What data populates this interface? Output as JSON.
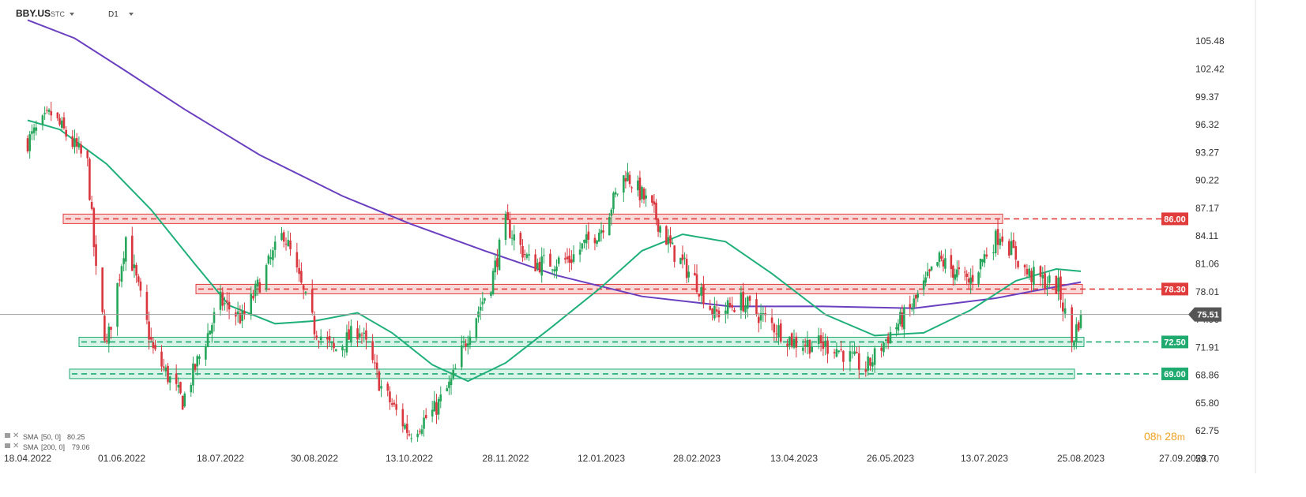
{
  "header": {
    "symbol": "BBY.US",
    "suffix": "STC",
    "timeframe": "D1"
  },
  "colors": {
    "bull": "#26a65b",
    "bear": "#d9363e",
    "sma50": "#1fb07a",
    "sma200": "#6a3fc0",
    "resistance": "#e03c3c",
    "support": "#1faa70",
    "price_line": "#9e9e9e"
  },
  "legend": {
    "sma50_label": "SMA",
    "sma50_params": "[50, 0]",
    "sma50_value": "80.25",
    "sma200_label": "SMA",
    "sma200_params": "[200, 0]",
    "sma200_value": "79.06"
  },
  "timer": {
    "hours": "08",
    "h": "h",
    "minutes": "28",
    "m": "m"
  },
  "chart_data": {
    "type": "candlestick",
    "title": "",
    "symbol": "BBY.US",
    "timeframe": "D1",
    "ylim": [
      59.7,
      108.5
    ],
    "y_ticks": [
      "105.48",
      "102.42",
      "99.37",
      "96.32",
      "93.27",
      "90.22",
      "87.17",
      "84.11",
      "81.06",
      "78.01",
      "74.96",
      "71.91",
      "68.86",
      "65.80",
      "62.75",
      "59.70"
    ],
    "x_ticks": [
      "18.04.2022",
      "01.06.2022",
      "18.07.2022",
      "30.08.2022",
      "13.10.2022",
      "28.11.2022",
      "12.01.2023",
      "28.02.2023",
      "13.04.2023",
      "26.05.2023",
      "13.07.2023",
      "25.08.2023",
      "27.09.2023"
    ],
    "current_price": 75.51,
    "levels": [
      {
        "value": 86.0,
        "label": "86.00",
        "kind": "resistance"
      },
      {
        "value": 78.3,
        "label": "78.30",
        "kind": "resistance"
      },
      {
        "value": 72.5,
        "label": "72.50",
        "kind": "support"
      },
      {
        "value": 69.0,
        "label": "69.00",
        "kind": "support"
      }
    ],
    "ohlc_anchors": [
      {
        "date": "2022-04-18",
        "close": 94.5
      },
      {
        "date": "2022-04-29",
        "close": 97.5
      },
      {
        "date": "2022-05-16",
        "close": 92.0
      },
      {
        "date": "2022-05-20",
        "close": 80.0
      },
      {
        "date": "2022-05-25",
        "close": 72.0
      },
      {
        "date": "2022-06-03",
        "close": 84.0
      },
      {
        "date": "2022-06-16",
        "close": 71.5
      },
      {
        "date": "2022-06-30",
        "close": 66.0
      },
      {
        "date": "2022-07-18",
        "close": 77.0
      },
      {
        "date": "2022-07-28",
        "close": 75.0
      },
      {
        "date": "2022-08-16",
        "close": 84.5
      },
      {
        "date": "2022-08-30",
        "close": 74.0
      },
      {
        "date": "2022-09-08",
        "close": 71.5
      },
      {
        "date": "2022-09-20",
        "close": 74.0
      },
      {
        "date": "2022-09-30",
        "close": 67.5
      },
      {
        "date": "2022-10-13",
        "close": 62.5
      },
      {
        "date": "2022-10-25",
        "close": 65.0
      },
      {
        "date": "2022-11-02",
        "close": 68.0
      },
      {
        "date": "2022-11-11",
        "close": 74.0
      },
      {
        "date": "2022-11-21",
        "close": 79.0
      },
      {
        "date": "2022-11-28",
        "close": 85.5
      },
      {
        "date": "2022-12-10",
        "close": 81.0
      },
      {
        "date": "2022-12-28",
        "close": 81.5
      },
      {
        "date": "2023-01-12",
        "close": 85.0
      },
      {
        "date": "2023-01-24",
        "close": 91.0
      },
      {
        "date": "2023-02-06",
        "close": 87.0
      },
      {
        "date": "2023-02-16",
        "close": 82.5
      },
      {
        "date": "2023-02-28",
        "close": 79.0
      },
      {
        "date": "2023-03-08",
        "close": 75.5
      },
      {
        "date": "2023-03-20",
        "close": 77.0
      },
      {
        "date": "2023-04-13",
        "close": 72.5
      },
      {
        "date": "2023-05-01",
        "close": 72.0
      },
      {
        "date": "2023-05-15",
        "close": 69.5
      },
      {
        "date": "2023-05-26",
        "close": 73.5
      },
      {
        "date": "2023-06-05",
        "close": 76.0
      },
      {
        "date": "2023-06-20",
        "close": 81.5
      },
      {
        "date": "2023-07-05",
        "close": 79.0
      },
      {
        "date": "2023-07-20",
        "close": 84.5
      },
      {
        "date": "2023-08-01",
        "close": 80.0
      },
      {
        "date": "2023-08-15",
        "close": 78.5
      },
      {
        "date": "2023-08-21",
        "close": 72.5
      },
      {
        "date": "2023-08-25",
        "close": 75.51
      }
    ],
    "sma50": [
      {
        "date": "2022-04-18",
        "value": 96.8
      },
      {
        "date": "2022-05-03",
        "value": 95.8
      },
      {
        "date": "2022-05-25",
        "value": 92.0
      },
      {
        "date": "2022-06-15",
        "value": 87.0
      },
      {
        "date": "2022-07-06",
        "value": 81.0
      },
      {
        "date": "2022-07-22",
        "value": 76.5
      },
      {
        "date": "2022-08-12",
        "value": 74.5
      },
      {
        "date": "2022-08-30",
        "value": 74.8
      },
      {
        "date": "2022-09-19",
        "value": 75.7
      },
      {
        "date": "2022-10-05",
        "value": 73.5
      },
      {
        "date": "2022-10-24",
        "value": 70.0
      },
      {
        "date": "2022-11-10",
        "value": 68.2
      },
      {
        "date": "2022-11-28",
        "value": 70.2
      },
      {
        "date": "2022-12-19",
        "value": 74.0
      },
      {
        "date": "2023-01-12",
        "value": 78.5
      },
      {
        "date": "2023-02-01",
        "value": 82.5
      },
      {
        "date": "2023-02-21",
        "value": 84.3
      },
      {
        "date": "2023-03-13",
        "value": 83.5
      },
      {
        "date": "2023-04-03",
        "value": 80.0
      },
      {
        "date": "2023-04-27",
        "value": 75.5
      },
      {
        "date": "2023-05-19",
        "value": 73.2
      },
      {
        "date": "2023-06-12",
        "value": 73.5
      },
      {
        "date": "2023-07-06",
        "value": 76.0
      },
      {
        "date": "2023-07-27",
        "value": 79.2
      },
      {
        "date": "2023-08-14",
        "value": 80.5
      },
      {
        "date": "2023-08-25",
        "value": 80.25
      }
    ],
    "sma200": [
      {
        "date": "2022-04-18",
        "value": 107.8
      },
      {
        "date": "2022-05-10",
        "value": 105.8
      },
      {
        "date": "2022-06-01",
        "value": 102.5
      },
      {
        "date": "2022-07-01",
        "value": 98.0
      },
      {
        "date": "2022-08-05",
        "value": 93.0
      },
      {
        "date": "2022-09-12",
        "value": 88.5
      },
      {
        "date": "2022-10-13",
        "value": 85.5
      },
      {
        "date": "2022-11-18",
        "value": 82.5
      },
      {
        "date": "2022-12-22",
        "value": 79.8
      },
      {
        "date": "2023-02-01",
        "value": 77.5
      },
      {
        "date": "2023-03-15",
        "value": 76.4
      },
      {
        "date": "2023-04-26",
        "value": 76.4
      },
      {
        "date": "2023-06-07",
        "value": 76.2
      },
      {
        "date": "2023-07-18",
        "value": 77.3
      },
      {
        "date": "2023-08-25",
        "value": 79.06
      }
    ]
  }
}
